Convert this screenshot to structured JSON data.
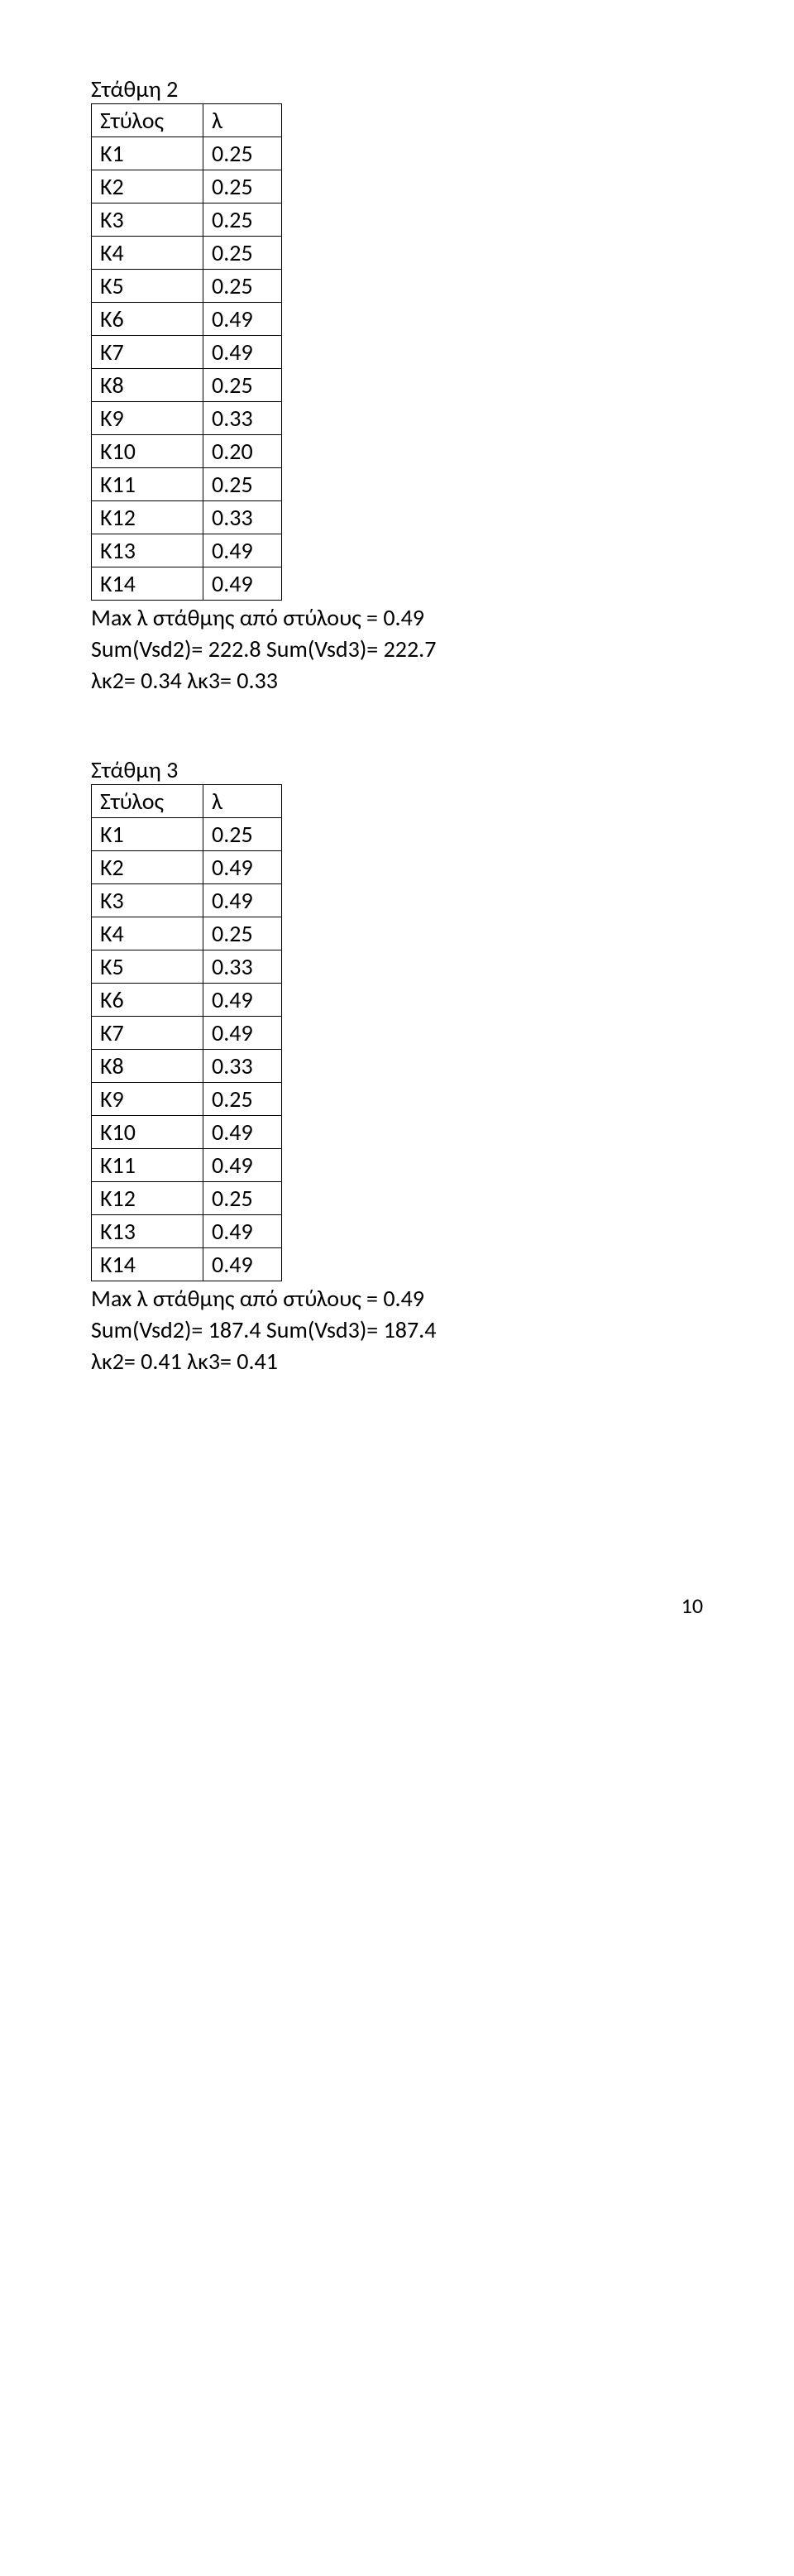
{
  "page_number": "10",
  "sections": [
    {
      "title": "Στάθμη 2",
      "header": [
        "Στύλος",
        "λ"
      ],
      "rows": [
        [
          "K1",
          "0.25"
        ],
        [
          "K2",
          "0.25"
        ],
        [
          "K3",
          "0.25"
        ],
        [
          "K4",
          "0.25"
        ],
        [
          "K5",
          "0.25"
        ],
        [
          "K6",
          "0.49"
        ],
        [
          "K7",
          "0.49"
        ],
        [
          "K8",
          "0.25"
        ],
        [
          "K9",
          "0.33"
        ],
        [
          "K10",
          "0.20"
        ],
        [
          "K11",
          "0.25"
        ],
        [
          "K12",
          "0.33"
        ],
        [
          "K13",
          "0.49"
        ],
        [
          "K14",
          "0.49"
        ]
      ],
      "post_lines": [
        "Max λ στάθμης από στύλους = 0.49",
        "Sum(Vsd2)= 222.8 Sum(Vsd3)= 222.7",
        "λκ2= 0.34 λκ3= 0.33"
      ]
    },
    {
      "title": "Στάθμη 3",
      "header": [
        "Στύλος",
        "λ"
      ],
      "rows": [
        [
          "K1",
          "0.25"
        ],
        [
          "K2",
          "0.49"
        ],
        [
          "K3",
          "0.49"
        ],
        [
          "K4",
          "0.25"
        ],
        [
          "K5",
          "0.33"
        ],
        [
          "K6",
          "0.49"
        ],
        [
          "K7",
          "0.49"
        ],
        [
          "K8",
          "0.33"
        ],
        [
          "K9",
          "0.25"
        ],
        [
          "K10",
          "0.49"
        ],
        [
          "K11",
          "0.49"
        ],
        [
          "K12",
          "0.25"
        ],
        [
          "K13",
          "0.49"
        ],
        [
          "K14",
          "0.49"
        ]
      ],
      "post_lines": [
        "Max λ στάθμης από στύλους = 0.49",
        "Sum(Vsd2)= 187.4 Sum(Vsd3)= 187.4",
        "λκ2= 0.41 λκ3= 0.41"
      ]
    }
  ]
}
